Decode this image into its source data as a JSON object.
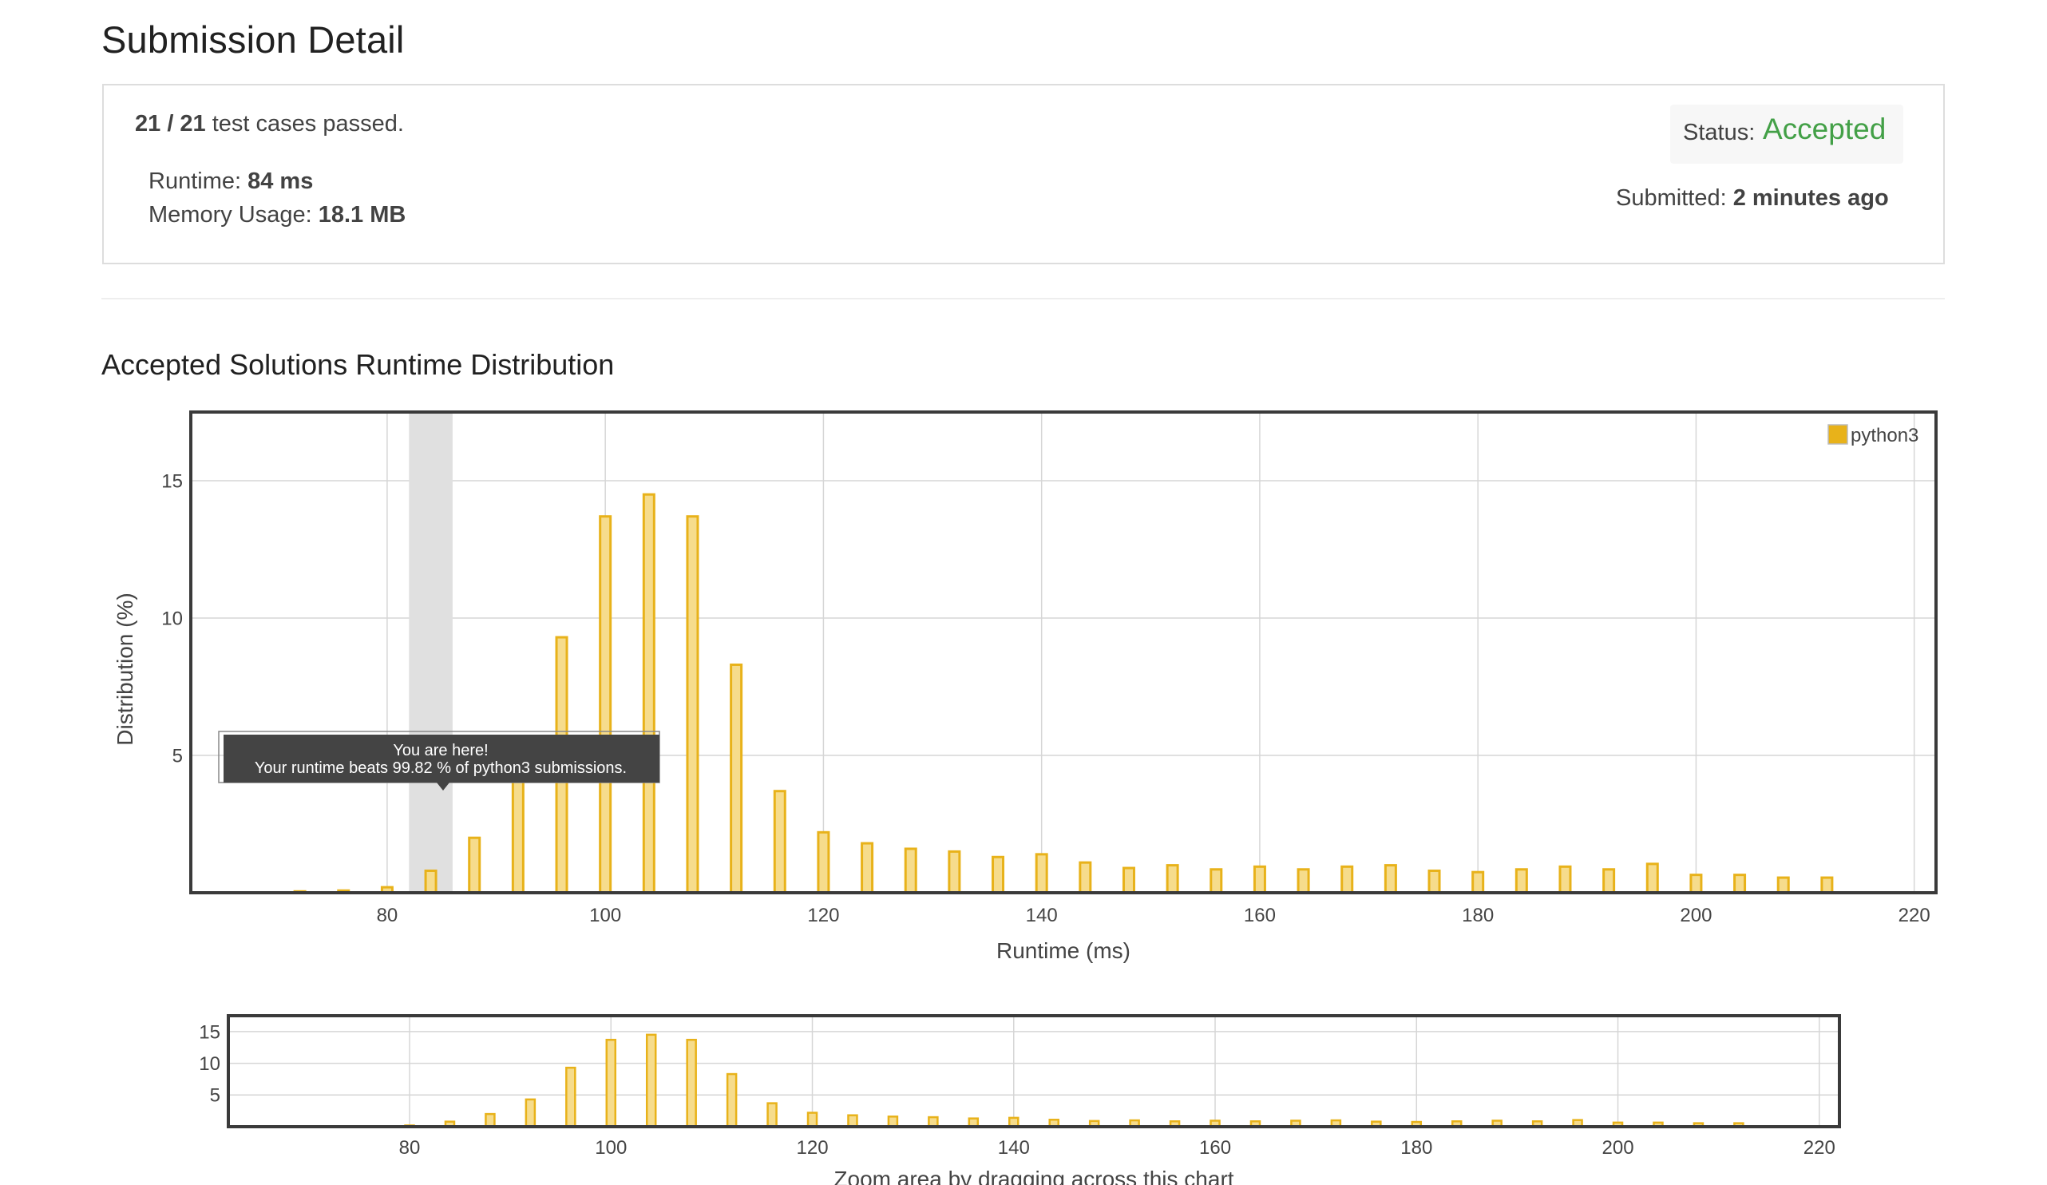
{
  "page": {
    "title": "Submission Detail"
  },
  "summary": {
    "cases_passed": "21 / 21",
    "cases_suffix": " test cases passed.",
    "runtime_label": "Runtime: ",
    "runtime_value": "84 ms",
    "memory_label": "Memory Usage: ",
    "memory_value": "18.1 MB",
    "status_label": "Status: ",
    "status_value": "Accepted",
    "submitted_label": "Submitted: ",
    "submitted_value": "2 minutes ago"
  },
  "colors": {
    "accepted": "#43a047",
    "bar_fill": "#f6dc8c",
    "bar_stroke": "#e8b21a",
    "highlight_band": "#e0e0e0",
    "tooltip_bg": "#444444"
  },
  "section": {
    "title": "Accepted Solutions Runtime Distribution"
  },
  "tooltip": {
    "line1": "You are here!",
    "line2": "Your runtime beats 99.82 % of python3 submissions."
  },
  "chart_data": [
    {
      "type": "bar",
      "role": "main",
      "xlabel": "Runtime (ms)",
      "ylabel": "Distribution (%)",
      "xlim": [
        62,
        222
      ],
      "ylim": [
        0,
        17.5
      ],
      "xticks": [
        80,
        100,
        120,
        140,
        160,
        180,
        200,
        220
      ],
      "yticks": [
        5,
        10,
        15
      ],
      "grid": true,
      "legend_position": "top-right",
      "highlight_range": [
        82,
        86
      ],
      "series": [
        {
          "name": "python3",
          "x": [
            72,
            76,
            80,
            84,
            88,
            92,
            96,
            100,
            104,
            108,
            112,
            116,
            120,
            124,
            128,
            132,
            136,
            140,
            144,
            148,
            152,
            156,
            160,
            164,
            168,
            172,
            176,
            180,
            184,
            188,
            192,
            196,
            200,
            204,
            208,
            212
          ],
          "values": [
            0.05,
            0.08,
            0.2,
            0.8,
            2.0,
            4.3,
            9.3,
            13.7,
            14.5,
            13.7,
            8.3,
            3.7,
            2.2,
            1.8,
            1.6,
            1.5,
            1.3,
            1.4,
            1.1,
            0.9,
            1.0,
            0.85,
            0.95,
            0.85,
            0.95,
            1.0,
            0.8,
            0.75,
            0.85,
            0.95,
            0.85,
            1.05,
            0.65,
            0.65,
            0.55,
            0.55
          ]
        }
      ]
    },
    {
      "type": "bar",
      "role": "navigator",
      "xlabel": "Zoom area by dragging across this chart",
      "xlim": [
        62,
        222
      ],
      "ylim": [
        0,
        17.5
      ],
      "xticks": [
        80,
        100,
        120,
        140,
        160,
        180,
        200,
        220
      ],
      "yticks": [
        5,
        10,
        15
      ],
      "grid": true
    }
  ]
}
